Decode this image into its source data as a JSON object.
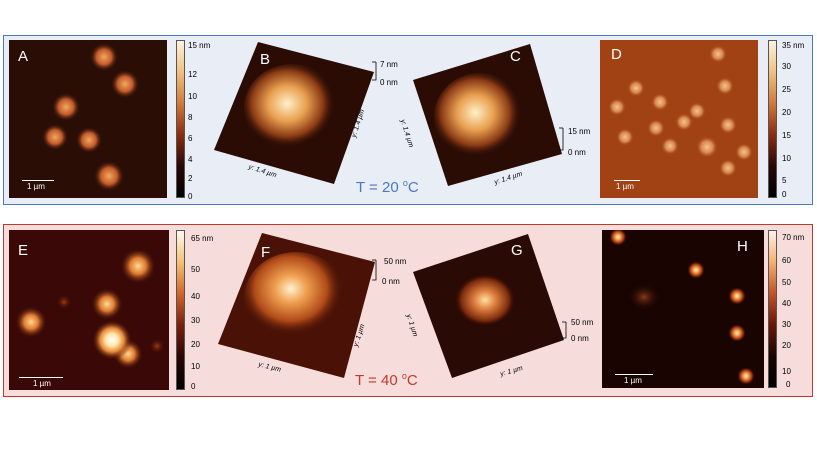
{
  "top_temperature": "T = 20",
  "top_temperature_unit": "C",
  "top_temperature_degree": "o",
  "bottom_temperature": "T = 40",
  "bottom_temperature_unit": "C",
  "bottom_temperature_degree": "o",
  "colors": {
    "top_border": "#4a78c2",
    "bottom_border": "#c0392b",
    "top_temp_text": "#4a78c2",
    "bottom_temp_text": "#c0392b"
  },
  "panels": {
    "A": {
      "letter": "A",
      "scale": "1 µm",
      "cbar_ticks": [
        "15 nm",
        "12",
        "10",
        "8",
        "6",
        "4",
        "2",
        "0"
      ]
    },
    "B": {
      "letter": "B",
      "z_top": "7 nm",
      "z_bottom": "0 nm",
      "x_axis": "y: 1.4 µm",
      "y_axis": "y: 1.4 µm"
    },
    "C": {
      "letter": "C",
      "z_top": "15 nm",
      "z_bottom": "0 nm",
      "x_axis": "y: 1.4 µm",
      "y_axis": "y: 1.4 µm"
    },
    "D": {
      "letter": "D",
      "scale": "1 µm",
      "cbar_ticks": [
        "35 nm",
        "30",
        "25",
        "20",
        "15",
        "10",
        "5",
        "0"
      ]
    },
    "E": {
      "letter": "E",
      "scale": "1 µm",
      "cbar_ticks": [
        "65 nm",
        "50",
        "40",
        "30",
        "20",
        "10",
        "0"
      ]
    },
    "F": {
      "letter": "F",
      "z_top": "50 nm",
      "z_bottom": "0 nm",
      "x_axis": "y: 1 µm",
      "y_axis": "y: 1 µm"
    },
    "G": {
      "letter": "G",
      "z_top": "50 nm",
      "z_bottom": "0 nm",
      "x_axis": "y: 1 µm",
      "y_axis": "y: 1 µm"
    },
    "H": {
      "letter": "H",
      "scale": "1 µm",
      "cbar_ticks": [
        "70 nm",
        "60",
        "50",
        "40",
        "30",
        "20",
        "10",
        "0"
      ]
    }
  }
}
